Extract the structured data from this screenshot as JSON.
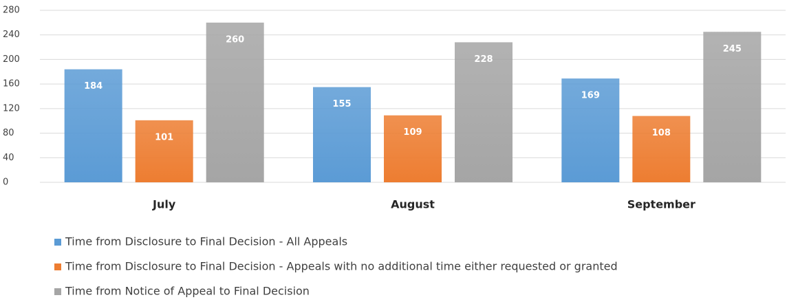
{
  "chart_data": {
    "type": "bar",
    "categories": [
      "July",
      "August",
      "September"
    ],
    "series": [
      {
        "name": "Time from Disclosure to Final Decision - All Appeals",
        "color": "#5b9bd5",
        "values": [
          184,
          155,
          169
        ]
      },
      {
        "name": "Time from Disclosure to Final Decision - Appeals with no additional time either requested or granted",
        "color": "#ed7d31",
        "values": [
          101,
          109,
          108
        ]
      },
      {
        "name": "Time from Notice of Appeal to Final Decision",
        "color": "#a5a5a5",
        "values": [
          260,
          228,
          245
        ]
      }
    ],
    "ylim": [
      0,
      280
    ],
    "yticks": [
      0,
      40,
      80,
      120,
      160,
      200,
      240,
      280
    ],
    "grid": true,
    "legend": "bottom"
  }
}
